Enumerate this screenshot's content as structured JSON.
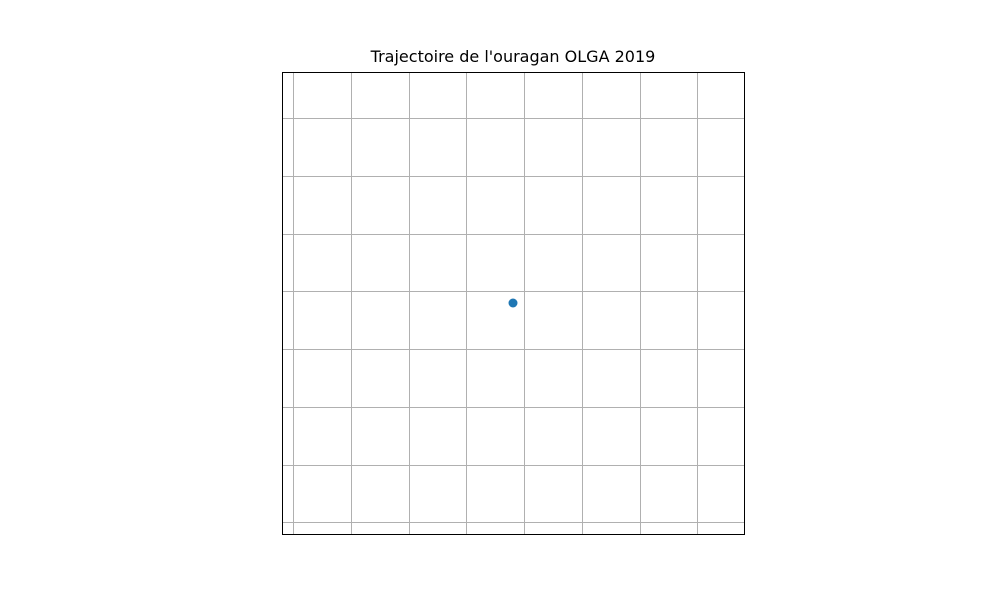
{
  "chart_data": {
    "type": "scatter",
    "title": "Trajectoire de l'ouragan OLGA 2019",
    "xlabel": "",
    "ylabel": "",
    "grid": true,
    "points": [
      {
        "x": 0.0,
        "y": 0.0
      }
    ],
    "point_color": "#1f77b4",
    "grid_color": "#b0b0b0"
  }
}
